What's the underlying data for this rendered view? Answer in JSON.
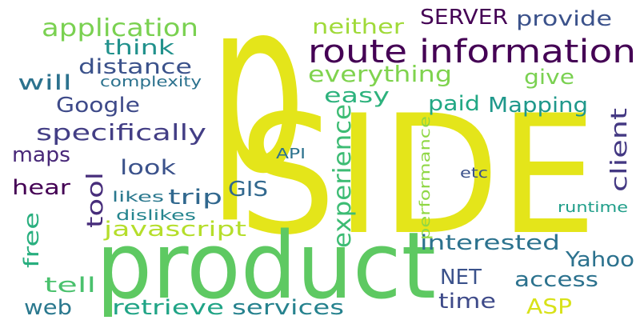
{
  "words": [
    {
      "text": "p",
      "color": "#e4e51a"
    },
    {
      "text": "SIDE",
      "color": "#e4e51a"
    },
    {
      "text": "product",
      "color": "#5ec962"
    },
    {
      "text": "route information",
      "color": "#440154"
    },
    {
      "text": "application",
      "color": "#7ad151"
    },
    {
      "text": "think",
      "color": "#21918c"
    },
    {
      "text": "distance",
      "color": "#3b528b"
    },
    {
      "text": "will",
      "color": "#2c728e"
    },
    {
      "text": "complexity",
      "color": "#2c728e"
    },
    {
      "text": "Google",
      "color": "#3e4a89"
    },
    {
      "text": "specifically",
      "color": "#433e85"
    },
    {
      "text": "maps",
      "color": "#482878"
    },
    {
      "text": "look",
      "color": "#3b528b"
    },
    {
      "text": "hear",
      "color": "#440154"
    },
    {
      "text": "tool",
      "color": "#472d7b"
    },
    {
      "text": "trip",
      "color": "#31688e"
    },
    {
      "text": "GIS",
      "color": "#31688e"
    },
    {
      "text": "likes",
      "color": "#2a788e"
    },
    {
      "text": "dislikes",
      "color": "#25858e"
    },
    {
      "text": "javascript",
      "color": "#b5de2b"
    },
    {
      "text": "free",
      "color": "#29af7f"
    },
    {
      "text": "tell",
      "color": "#4ac16d"
    },
    {
      "text": "web",
      "color": "#2a788e"
    },
    {
      "text": "retrieve",
      "color": "#20a486"
    },
    {
      "text": "services",
      "color": "#26828e"
    },
    {
      "text": "neither",
      "color": "#a0da39"
    },
    {
      "text": "SERVER",
      "color": "#440154"
    },
    {
      "text": "provide",
      "color": "#3b528b"
    },
    {
      "text": "everything",
      "color": "#7fd34e"
    },
    {
      "text": "give",
      "color": "#7ad151"
    },
    {
      "text": "easy",
      "color": "#2db27d"
    },
    {
      "text": "paid",
      "color": "#22a884"
    },
    {
      "text": "Mapping",
      "color": "#1f988b"
    },
    {
      "text": "client",
      "color": "#443983"
    },
    {
      "text": "experience",
      "color": "#3dbc74"
    },
    {
      "text": "performance",
      "color": "#8fd744"
    },
    {
      "text": "API",
      "color": "#2c728e"
    },
    {
      "text": "etc",
      "color": "#3b528b"
    },
    {
      "text": "runtime",
      "color": "#1f9e89"
    },
    {
      "text": "interested",
      "color": "#2c728e"
    },
    {
      "text": "Yahoo",
      "color": "#2c728e"
    },
    {
      "text": "NET",
      "color": "#3b528b"
    },
    {
      "text": "access",
      "color": "#2c728e"
    },
    {
      "text": "time",
      "color": "#3e4a89"
    },
    {
      "text": "ASP",
      "color": "#d8e219"
    }
  ]
}
